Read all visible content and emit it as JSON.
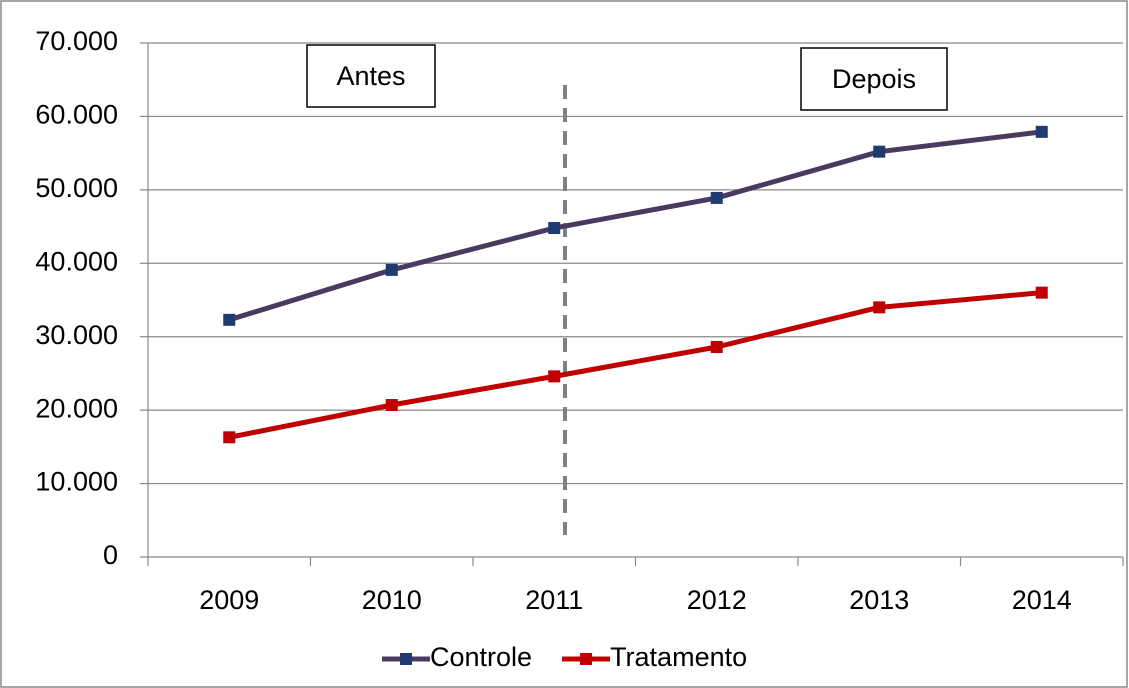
{
  "chart_data": {
    "type": "line",
    "categories": [
      "2009",
      "2010",
      "2011",
      "2012",
      "2013",
      "2014"
    ],
    "series": [
      {
        "name": "Controle",
        "color": "#4b3a5f",
        "marker_color": "#1f3b70",
        "values": [
          32300,
          39100,
          44800,
          48900,
          55200,
          57900
        ]
      },
      {
        "name": "Tratamento",
        "color": "#c00000",
        "marker_color": "#c00000",
        "values": [
          16300,
          20700,
          24600,
          28600,
          34000,
          36000
        ]
      }
    ],
    "annotations": [
      "Antes",
      "Depois"
    ],
    "ylim": [
      0,
      70000
    ],
    "yticks": [
      0,
      {
        "value": 10000,
        "label": "10.000"
      },
      {
        "value": 20000,
        "label": "20.000"
      },
      {
        "value": 30000,
        "label": "30.000"
      },
      {
        "value": 40000,
        "label": "40.000"
      },
      {
        "value": 50000,
        "label": "50.000"
      },
      {
        "value": 60000,
        "label": "60.000"
      },
      {
        "value": 70000,
        "label": "70.000"
      }
    ],
    "grid": true,
    "legend": "bottom"
  }
}
